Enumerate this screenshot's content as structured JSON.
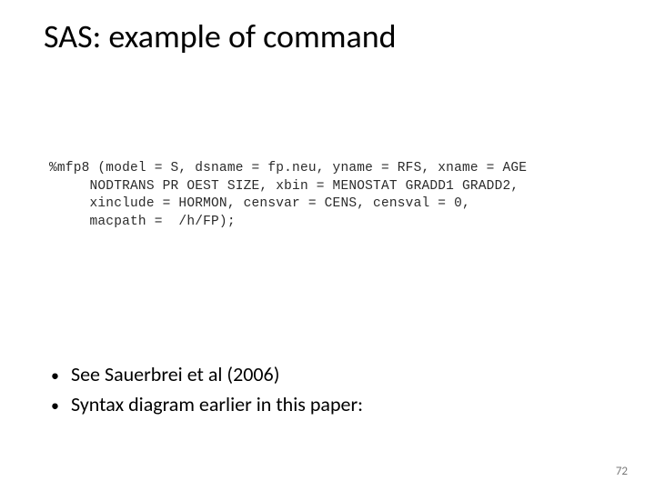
{
  "title": "SAS: example of command",
  "code": {
    "line1": "%mfp8 (model = S, dsname = fp.neu, yname = RFS, xname = AGE",
    "line2": "     NODTRANS PR OEST SIZE, xbin = MENOSTAT GRADD1 GRADD2,",
    "line3": "     xinclude = HORMON, censvar = CENS, censval = 0,",
    "line4": "     macpath =  /h/FP);"
  },
  "bullets": [
    "See Sauerbrei et al (2006)",
    "Syntax diagram earlier in this paper:"
  ],
  "page_number": "72",
  "styling": {
    "background_color": "#ffffff",
    "title_fontsize": 36,
    "code_fontsize": 14.5,
    "code_fontfamily": "Courier New",
    "bullet_fontsize": 22,
    "pagenum_fontsize": 13,
    "pagenum_color": "#7a7a7a",
    "text_color": "#000000"
  }
}
